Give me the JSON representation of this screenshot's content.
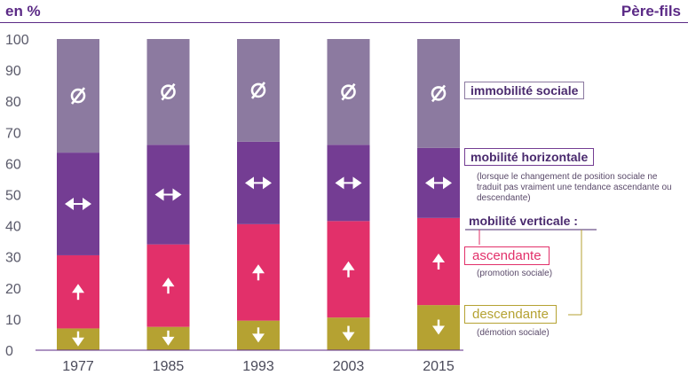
{
  "header": {
    "unit_label": "en %",
    "title": "Père-fils"
  },
  "chart_data": {
    "type": "bar",
    "stacked": true,
    "categories": [
      "1977",
      "1985",
      "1993",
      "2003",
      "2015"
    ],
    "ylim": [
      0,
      100
    ],
    "yticks": [
      0,
      10,
      20,
      30,
      40,
      50,
      60,
      70,
      80,
      90,
      100
    ],
    "grid": false,
    "legend_placement": "right",
    "series": [
      {
        "name": "descendante",
        "color": "#b5a232",
        "values": [
          7,
          7.5,
          9.5,
          10.5,
          14.5
        ]
      },
      {
        "name": "ascendante",
        "color": "#e2306a",
        "values": [
          23.5,
          26.5,
          31,
          31,
          28
        ]
      },
      {
        "name": "mobilité horizontale",
        "color": "#743d93",
        "values": [
          33,
          32,
          26.5,
          24.5,
          22.5
        ]
      },
      {
        "name": "immobilité sociale",
        "color": "#8c7aa0",
        "values": [
          36.5,
          34,
          33,
          34,
          35
        ]
      }
    ]
  },
  "legend": {
    "immobilite": {
      "label": "immobilité sociale"
    },
    "horizontale": {
      "label": "mobilité horizontale",
      "note": "(lorsque le changement de position sociale ne traduit pas vraiment une tendance ascendante ou descendante)"
    },
    "verticale": {
      "label": "mobilité verticale :"
    },
    "ascendante": {
      "label": "ascendante",
      "note": "(promotion sociale)"
    },
    "descendante": {
      "label": "descendante",
      "note": "(démotion sociale)"
    }
  },
  "icons": {
    "immobilite": "empty-set-icon",
    "horizontale": "left-right-arrow-icon",
    "ascendante": "up-arrow-icon",
    "descendante": "down-arrow-icon"
  }
}
